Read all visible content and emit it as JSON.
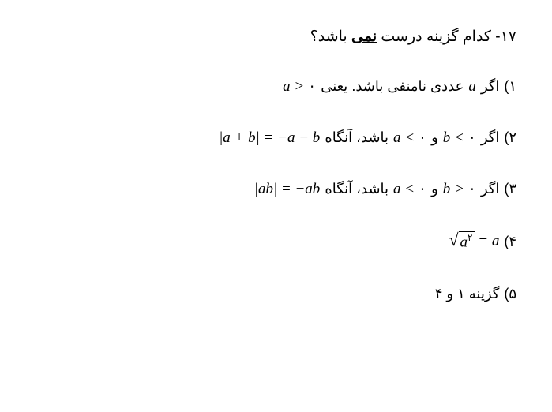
{
  "question": {
    "number": "۱۷-",
    "text_before": "کدام گزینه درست ",
    "underlined": "نمی",
    "text_after": " باشد؟"
  },
  "options": {
    "opt1": {
      "label": "۱)",
      "text_before": "اگر ",
      "var_a": "a",
      "text_mid": " عددی نامنفی باشد. یعنی  ",
      "math": "a > ",
      "zero": "۰"
    },
    "opt2": {
      "label": "۲)",
      "text_before": "اگر ",
      "math_b": "b < ",
      "zero1": "۰",
      "text_and": " و ",
      "math_a": "a < ",
      "zero2": "۰",
      "text_then": " باشد، آنگاه ",
      "math_eq": "|a + b| = −a − b"
    },
    "opt3": {
      "label": "۳)",
      "text_before": "اگر ",
      "math_b": "b > ",
      "zero1": "۰",
      "text_and": " و ",
      "math_a": "a < ",
      "zero2": "۰",
      "text_then": " باشد، آنگاه ",
      "math_eq": "|ab| = −ab"
    },
    "opt4": {
      "label": "۴)",
      "sqrt_body_var": "a",
      "sqrt_body_exp": "۲",
      "eq_rhs": " = a"
    },
    "opt5": {
      "label": "۵)",
      "text": "گزینه ۱ و ۴"
    }
  }
}
